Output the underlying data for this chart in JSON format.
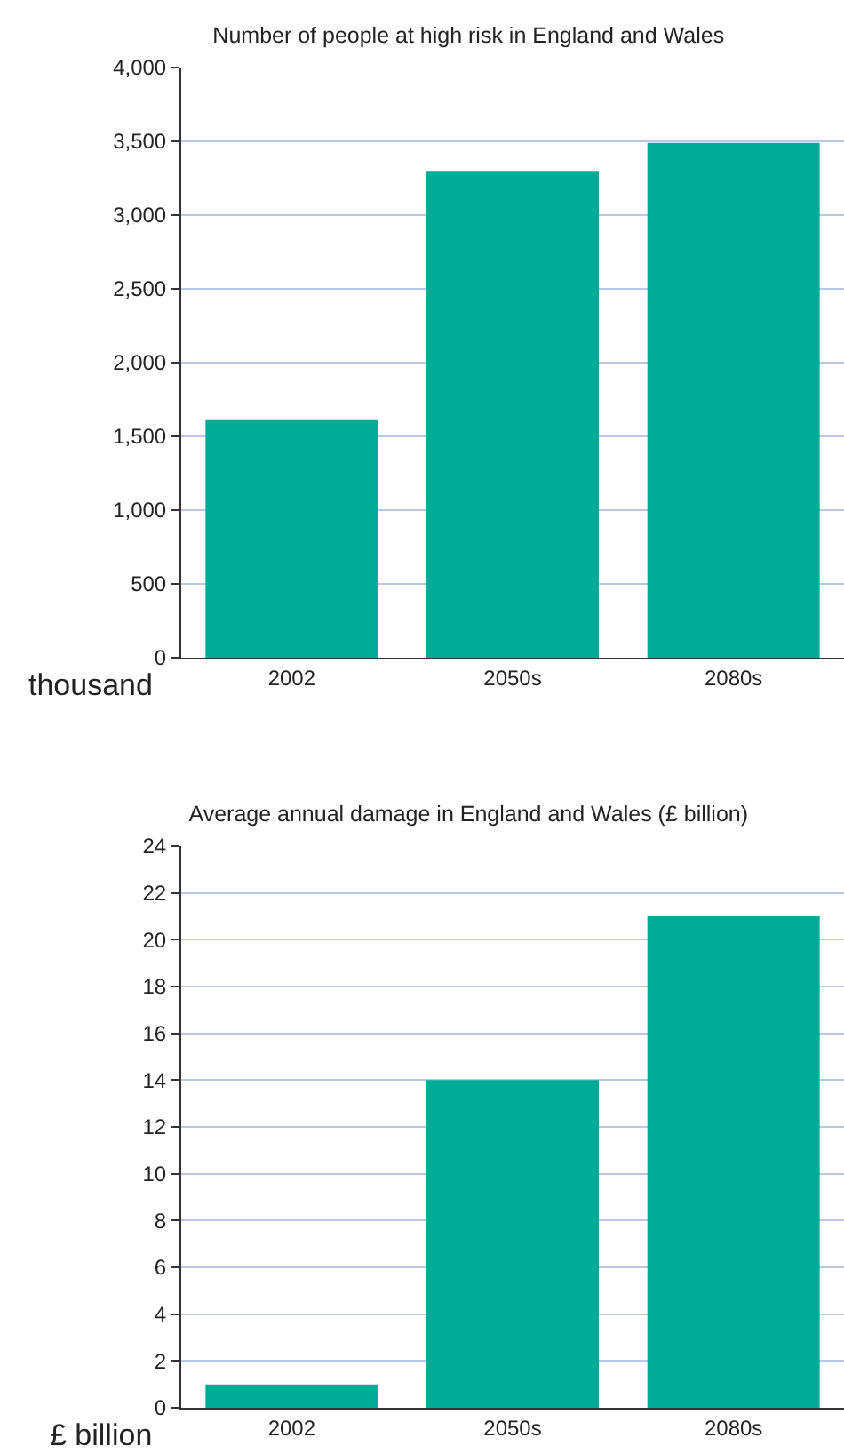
{
  "chart_data": [
    {
      "type": "bar",
      "title": "Number of people at high risk in England and Wales",
      "ylabel": "thousand",
      "categories": [
        "2002",
        "2050s",
        "2080s"
      ],
      "values": [
        1610,
        3300,
        3490
      ],
      "color": "#00ab97",
      "ylim": [
        0,
        4000
      ],
      "yticks": [
        {
          "value": 0,
          "label": "0"
        },
        {
          "value": 500,
          "label": "500"
        },
        {
          "value": 1000,
          "label": "1,000"
        },
        {
          "value": 1500,
          "label": "1,500"
        },
        {
          "value": 2000,
          "label": "2,000"
        },
        {
          "value": 2500,
          "label": "2,500"
        },
        {
          "value": 3000,
          "label": "3,000"
        },
        {
          "value": 3500,
          "label": "3,500"
        },
        {
          "value": 4000,
          "label": "4,000"
        }
      ],
      "grid": "y"
    },
    {
      "type": "bar",
      "title": "Average annual damage in England and Wales (£ billion)",
      "ylabel": "£ billion",
      "categories": [
        "2002",
        "2050s",
        "2080s"
      ],
      "values": [
        1,
        14,
        21
      ],
      "color": "#00ab97",
      "ylim": [
        0,
        24
      ],
      "yticks": [
        0,
        2,
        4,
        6,
        8,
        10,
        12,
        14,
        16,
        18,
        20,
        22,
        24
      ],
      "grid": "y"
    }
  ]
}
